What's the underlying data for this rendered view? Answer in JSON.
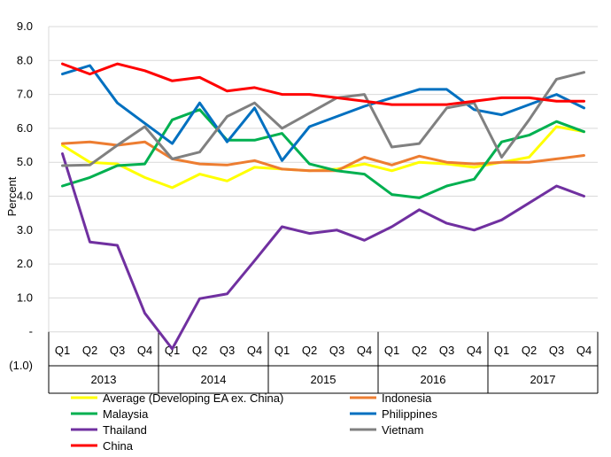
{
  "chart_data": {
    "type": "line",
    "ylabel": "Percent",
    "ylim": [
      -1,
      9
    ],
    "y_ticks": [
      {
        "value": 9,
        "label": "9.0"
      },
      {
        "value": 8,
        "label": "8.0"
      },
      {
        "value": 7,
        "label": "7.0"
      },
      {
        "value": 6,
        "label": "6.0"
      },
      {
        "value": 5,
        "label": "5.0"
      },
      {
        "value": 4,
        "label": "4.0"
      },
      {
        "value": 3,
        "label": "3.0"
      },
      {
        "value": 2,
        "label": "2.0"
      },
      {
        "value": 1,
        "label": "1.0"
      },
      {
        "value": 0,
        "label": "-"
      },
      {
        "value": -1,
        "label": "(1.0)"
      }
    ],
    "grid": "horizontal",
    "legend_position": "bottom",
    "categories": [
      "Q1",
      "Q2",
      "Q3",
      "Q4",
      "Q1",
      "Q2",
      "Q3",
      "Q4",
      "Q1",
      "Q2",
      "Q3",
      "Q4",
      "Q1",
      "Q2",
      "Q3",
      "Q4",
      "Q1",
      "Q2",
      "Q3",
      "Q4"
    ],
    "years": [
      "2013",
      "2014",
      "2015",
      "2016",
      "2017"
    ],
    "series": [
      {
        "name": "Average (Developing EA ex. China)",
        "color": "#ffff00",
        "values": [
          5.5,
          5.0,
          4.95,
          4.55,
          4.25,
          4.65,
          4.45,
          4.85,
          4.8,
          4.75,
          4.8,
          4.95,
          4.75,
          5.0,
          4.95,
          4.85,
          5.0,
          5.15,
          6.05,
          5.9
        ]
      },
      {
        "name": "Indonesia",
        "color": "#ed7d31",
        "values": [
          5.55,
          5.6,
          5.5,
          5.6,
          5.1,
          4.95,
          4.92,
          5.05,
          4.8,
          4.75,
          4.75,
          5.15,
          4.92,
          5.18,
          5.0,
          4.95,
          5.0,
          5.0,
          5.1,
          5.2
        ]
      },
      {
        "name": "Malaysia",
        "color": "#00b050",
        "values": [
          4.3,
          4.55,
          4.9,
          4.95,
          6.25,
          6.55,
          5.65,
          5.65,
          5.85,
          4.95,
          4.75,
          4.65,
          4.05,
          3.95,
          4.3,
          4.5,
          5.6,
          5.8,
          6.2,
          5.9
        ]
      },
      {
        "name": "Philippines",
        "color": "#0070c0",
        "values": [
          7.6,
          7.85,
          6.75,
          6.15,
          5.55,
          6.75,
          5.6,
          6.6,
          5.05,
          6.05,
          6.35,
          6.65,
          6.9,
          7.15,
          7.15,
          6.55,
          6.4,
          6.7,
          7.0,
          6.6
        ]
      },
      {
        "name": "Thailand",
        "color": "#7030a0",
        "values": [
          5.25,
          2.65,
          2.55,
          0.55,
          -0.5,
          0.98,
          1.12,
          2.1,
          3.1,
          2.9,
          3.0,
          2.7,
          3.1,
          3.6,
          3.2,
          3.0,
          3.3,
          3.8,
          4.3,
          4.0
        ]
      },
      {
        "name": "Vietnam",
        "color": "#808080",
        "values": [
          4.9,
          4.92,
          5.5,
          6.05,
          5.1,
          5.3,
          6.35,
          6.75,
          6.0,
          6.45,
          6.9,
          7.0,
          5.45,
          5.55,
          6.6,
          6.75,
          5.15,
          6.25,
          7.45,
          7.65
        ]
      },
      {
        "name": "China",
        "color": "#ff0000",
        "values": [
          7.9,
          7.6,
          7.9,
          7.7,
          7.4,
          7.5,
          7.1,
          7.2,
          7.0,
          7.0,
          6.9,
          6.8,
          6.7,
          6.7,
          6.7,
          6.8,
          6.9,
          6.9,
          6.8,
          6.8
        ]
      }
    ]
  }
}
